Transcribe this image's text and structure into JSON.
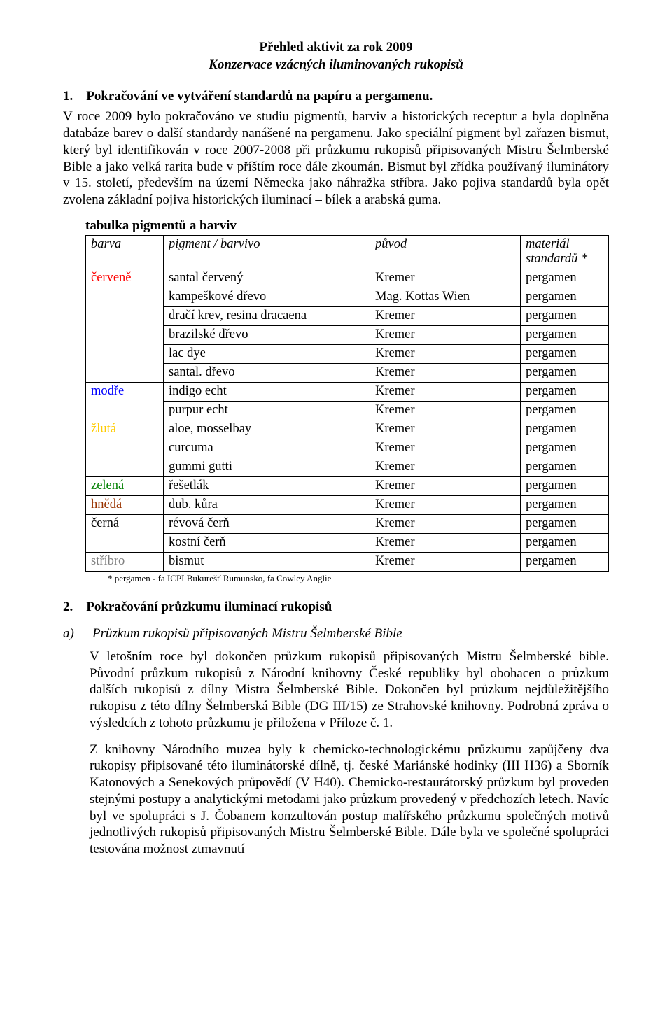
{
  "heading": {
    "title": "Přehled aktivit za rok 2009",
    "subtitle": "Konzervace vzácných iluminovaných rukopisů"
  },
  "section1": {
    "number": "1.",
    "title": "Pokračování ve vytváření standardů na papíru a pergamenu.",
    "paragraph": "V roce 2009 bylo pokračováno ve studiu pigmentů, barviv a historických receptur a byla doplněna databáze barev o další standardy nanášené na pergamenu. Jako speciální pigment byl zařazen bismut, který byl identifikován v roce 2007-2008 při průzkumu rukopisů připisovaných Mistru Šelmberské Bible a jako velká rarita bude v příštím roce dále zkoumán. Bismut byl zřídka používaný iluminátory v 15. století, především na území Německa jako náhražka stříbra. Jako pojiva standardů byla opět zvolena základní pojiva historických iluminací – bílek a arabská guma."
  },
  "table": {
    "caption": "tabulka pigmentů a barviv",
    "headers": {
      "barva": "barva",
      "pigment": "pigment / barvivo",
      "puvod": "původ",
      "material_l1": "materiál",
      "material_l2": "standardů *"
    },
    "groups": [
      {
        "label": "červeně",
        "color": "#ff0000",
        "rows": [
          {
            "pigment": "santal červený",
            "puvod": "Kremer",
            "material": "pergamen"
          },
          {
            "pigment": "kampeškové dřevo",
            "puvod": "Mag. Kottas Wien",
            "material": "pergamen"
          },
          {
            "pigment": "dračí krev, resina dracaena",
            "puvod": "Kremer",
            "material": "pergamen"
          },
          {
            "pigment": "brazilské dřevo",
            "puvod": "Kremer",
            "material": "pergamen"
          },
          {
            "pigment": "lac dye",
            "puvod": "Kremer",
            "material": "pergamen"
          },
          {
            "pigment": "santal. dřevo",
            "puvod": "Kremer",
            "material": "pergamen"
          }
        ]
      },
      {
        "label": "modře",
        "color": "#0000ff",
        "rows": [
          {
            "pigment": "indigo echt",
            "puvod": "Kremer",
            "material": "pergamen"
          },
          {
            "pigment": "purpur echt",
            "puvod": "Kremer",
            "material": "pergamen"
          }
        ]
      },
      {
        "label": "žlutá",
        "color": "#ffcc00",
        "rows": [
          {
            "pigment": "aloe, mosselbay",
            "puvod": "Kremer",
            "material": "pergamen"
          },
          {
            "pigment": "curcuma",
            "puvod": "Kremer",
            "material": "pergamen"
          },
          {
            "pigment": "gummi gutti",
            "puvod": "Kremer",
            "material": "pergamen"
          }
        ]
      },
      {
        "label": "zelená",
        "color": "#008000",
        "rows": [
          {
            "pigment": "řešetlák",
            "puvod": "Kremer",
            "material": "pergamen"
          }
        ]
      },
      {
        "label": "hnědá",
        "color": "#993300",
        "rows": [
          {
            "pigment": "dub. kůra",
            "puvod": "Kremer",
            "material": "pergamen"
          }
        ]
      },
      {
        "label": "černá",
        "color": "#000000",
        "rows": [
          {
            "pigment": "révová čerň",
            "puvod": "Kremer",
            "material": "pergamen"
          },
          {
            "pigment": "kostní čerň",
            "puvod": "Kremer",
            "material": "pergamen"
          }
        ]
      },
      {
        "label": "stříbro",
        "color": "#808080",
        "rows": [
          {
            "pigment": "bismut",
            "puvod": "Kremer",
            "material": "pergamen"
          }
        ]
      }
    ],
    "footnote": "* pergamen - fa ICPI Bukurešť Rumunsko, fa Cowley Anglie"
  },
  "section2": {
    "number": "2.",
    "title": "Pokračování průzkumu iluminací rukopisů",
    "sub_letter": "a)",
    "sub_title": "Průzkum rukopisů připisovaných Mistru Šelmberské Bible",
    "p1": "V letošním roce byl dokončen průzkum rukopisů připisovaných Mistru Šelmberské bible. Původní průzkum rukopisů z Národní knihovny České republiky byl obohacen o průzkum dalších rukopisů z dílny Mistra Šelmberské Bible. Dokončen byl průzkum nejdůležitějšího rukopisu z této dílny Šelmberská Bible (DG III/15) ze Strahovské knihovny. Podrobná zpráva o výsledcích z tohoto průzkumu je přiložena v Příloze č. 1.",
    "p2": "Z knihovny Národního muzea byly k chemicko-technologickému průzkumu zapůjčeny dva rukopisy připisované této iluminátorské dílně, tj. české Mariánské hodinky (III H36) a Sborník Katonových a Senekových průpovědí (V H40). Chemicko-restaurátorský průzkum byl proveden stejnými postupy a analytickými metodami jako průzkum provedený v předchozích letech. Navíc byl ve spolupráci s J. Čobanem konzultován postup malířského průzkumu společných motivů jednotlivých rukopisů připisovaných Mistru Šelmberské Bible. Dále byla ve společné spolupráci testována možnost ztmavnutí"
  }
}
